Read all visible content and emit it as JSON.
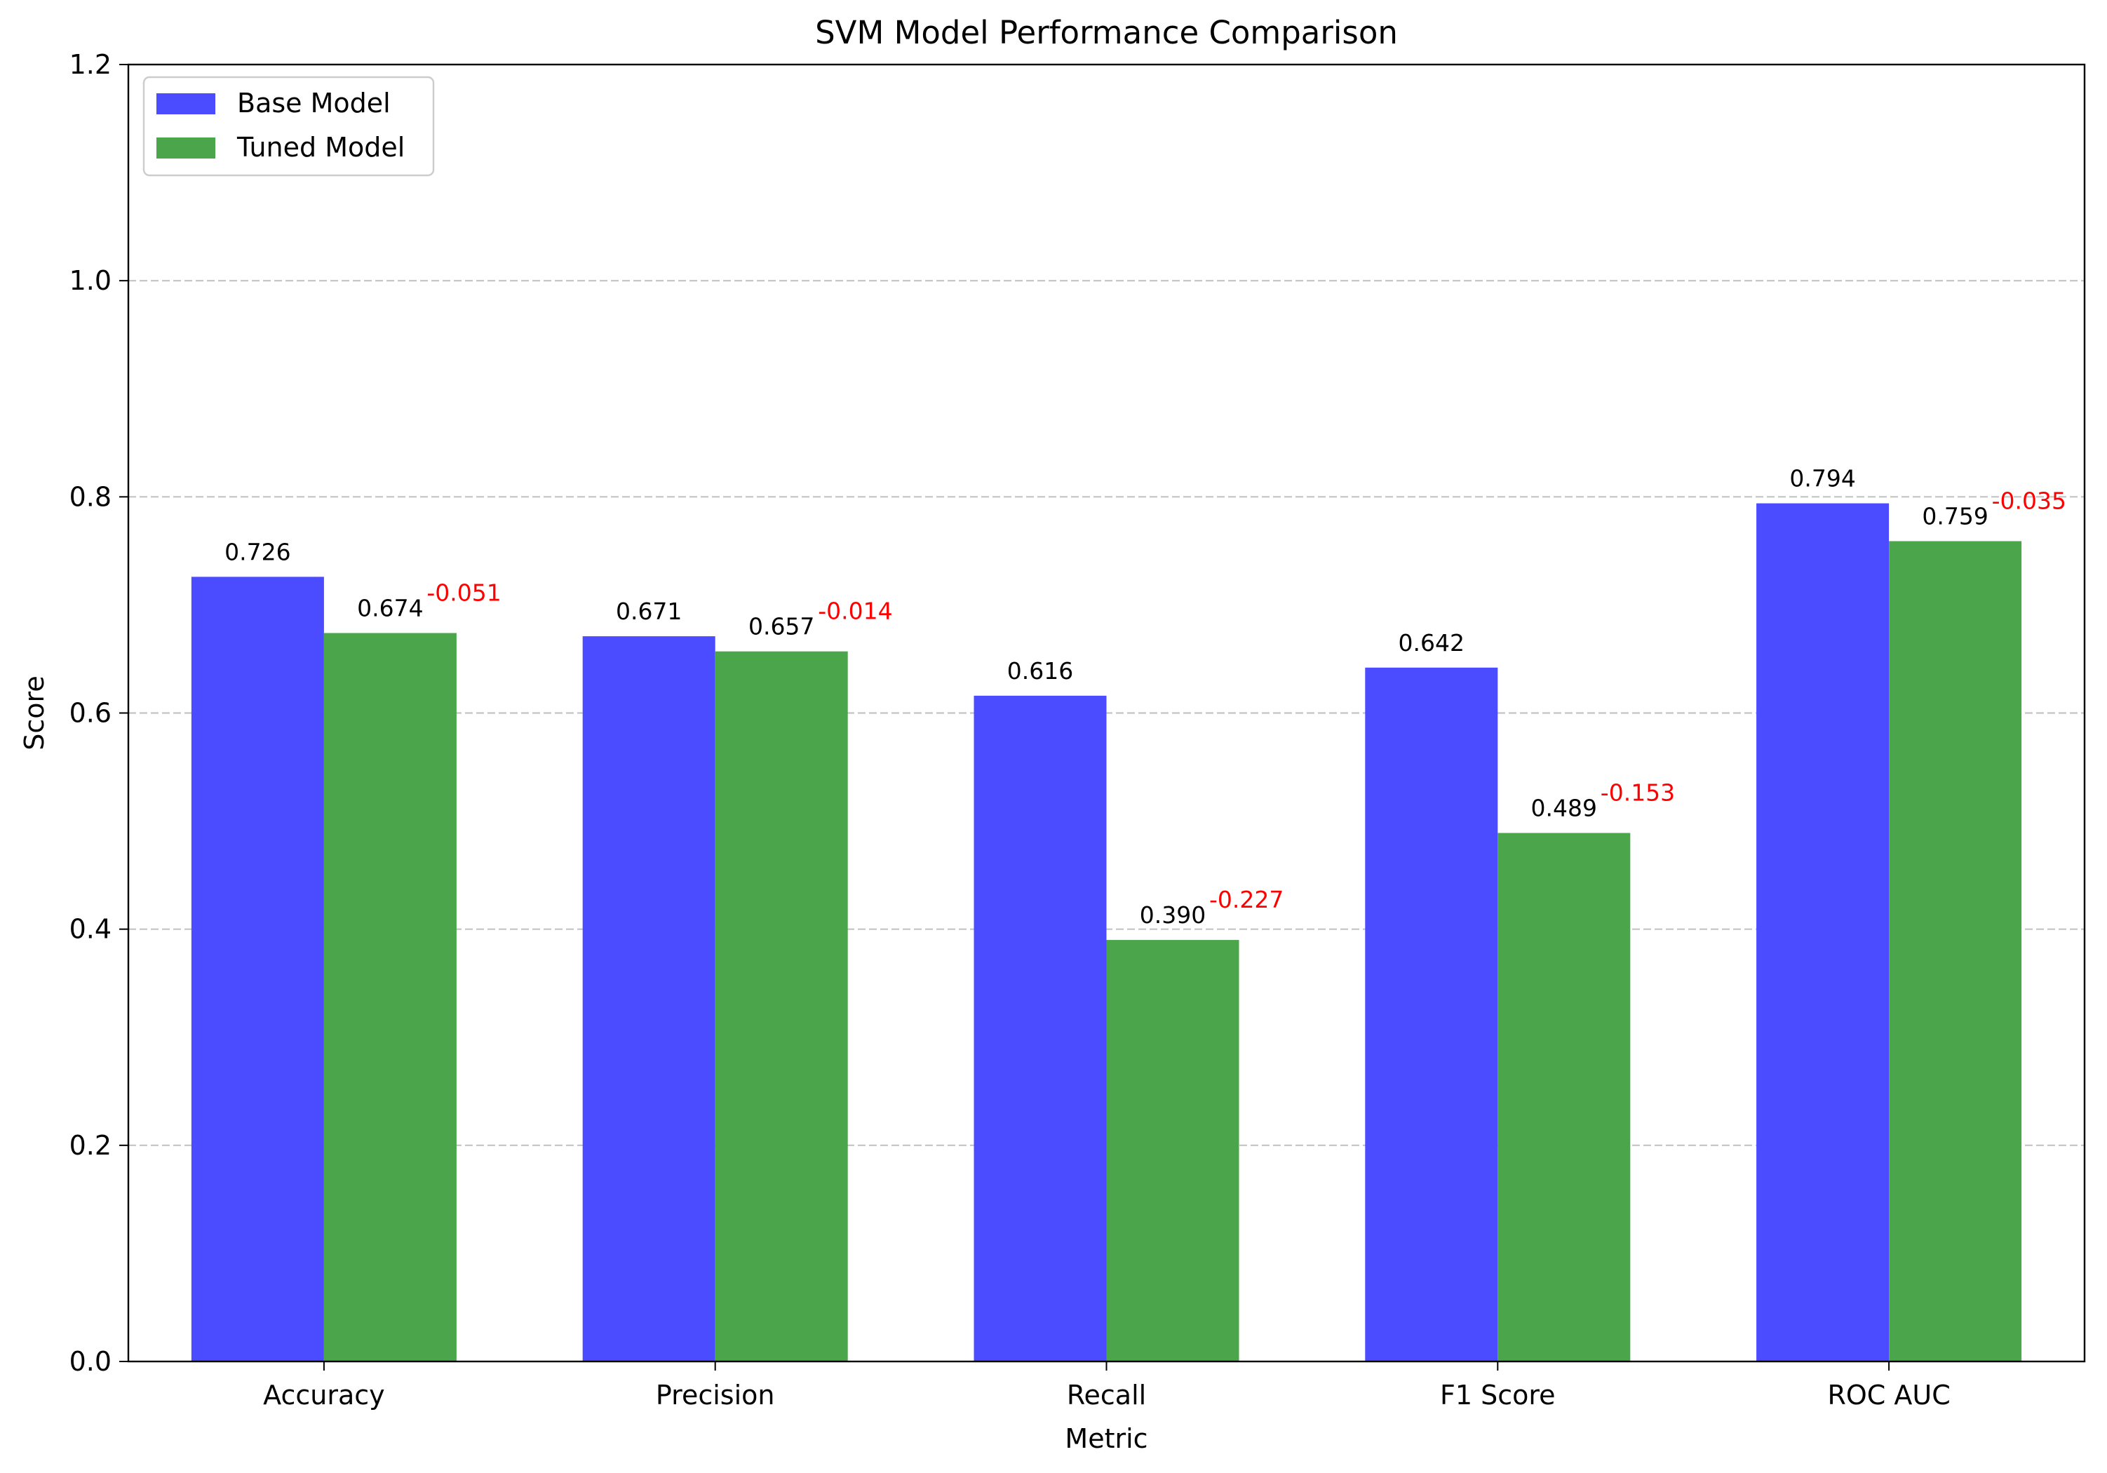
{
  "chart_data": {
    "type": "bar",
    "title": "SVM Model Performance Comparison",
    "xlabel": "Metric",
    "ylabel": "Score",
    "ylim": [
      0,
      1.2
    ],
    "yticks": [
      0.0,
      0.2,
      0.4,
      0.6,
      0.8,
      1.0,
      1.2
    ],
    "ytick_labels": [
      "0.0",
      "0.2",
      "0.4",
      "0.6",
      "0.8",
      "1.0",
      "1.2"
    ],
    "grid": "horizontal dashed",
    "legend_position": "top-left",
    "categories": [
      "Accuracy",
      "Precision",
      "Recall",
      "F1 Score",
      "ROC AUC"
    ],
    "series": [
      {
        "name": "Base Model",
        "color": "#4b4bff",
        "values": [
          0.726,
          0.671,
          0.616,
          0.642,
          0.794
        ],
        "labels": [
          "0.726",
          "0.671",
          "0.616",
          "0.642",
          "0.794"
        ]
      },
      {
        "name": "Tuned Model",
        "color": "#4ba64b",
        "values": [
          0.674,
          0.657,
          0.39,
          0.489,
          0.759
        ],
        "labels": [
          "0.674",
          "0.657",
          "0.390",
          "0.489",
          "0.759"
        ]
      }
    ],
    "annotations": {
      "color": "#ff0000",
      "values": [
        -0.051,
        -0.014,
        -0.227,
        -0.153,
        -0.035
      ],
      "labels": [
        "-0.051",
        "-0.014",
        "-0.227",
        "-0.153",
        "-0.035"
      ]
    }
  }
}
